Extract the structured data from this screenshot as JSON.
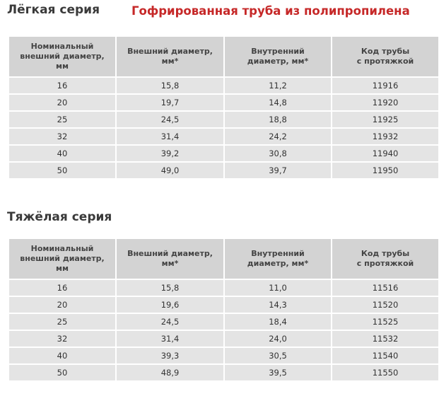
{
  "heading": "Гофрированная труба из полипропилена",
  "light_series": {
    "title": "Лёгкая серия",
    "columns": [
      [
        "Номинальный",
        "внешний диаметр,",
        "мм"
      ],
      [
        "Внешний диаметр,",
        "мм*"
      ],
      [
        "Внутренний",
        "диаметр, мм*"
      ],
      [
        "Код трубы",
        "с протяжкой"
      ]
    ],
    "rows": [
      [
        "16",
        "15,8",
        "11,2",
        "11916"
      ],
      [
        "20",
        "19,7",
        "14,8",
        "11920"
      ],
      [
        "25",
        "24,5",
        "18,8",
        "11925"
      ],
      [
        "32",
        "31,4",
        "24,2",
        "11932"
      ],
      [
        "40",
        "39,2",
        "30,8",
        "11940"
      ],
      [
        "50",
        "49,0",
        "39,7",
        "11950"
      ]
    ]
  },
  "heavy_series": {
    "title": "Тяжёлая серия",
    "columns": [
      [
        "Номинальный",
        "внешний диаметр,",
        "мм"
      ],
      [
        "Внешний диаметр,",
        "мм*"
      ],
      [
        "Внутренний",
        "диаметр, мм*"
      ],
      [
        "Код трубы",
        "с протяжкой"
      ]
    ],
    "rows": [
      [
        "16",
        "15,8",
        "11,0",
        "11516"
      ],
      [
        "20",
        "19,6",
        "14,3",
        "11520"
      ],
      [
        "25",
        "24,5",
        "18,4",
        "11525"
      ],
      [
        "32",
        "31,4",
        "24,0",
        "11532"
      ],
      [
        "40",
        "39,3",
        "30,5",
        "11540"
      ],
      [
        "50",
        "48,9",
        "39,5",
        "11550"
      ]
    ]
  },
  "colors": {
    "heading": "#c62828",
    "header_cell": "#d3d3d3",
    "body_cell": "#e4e4e4"
  }
}
